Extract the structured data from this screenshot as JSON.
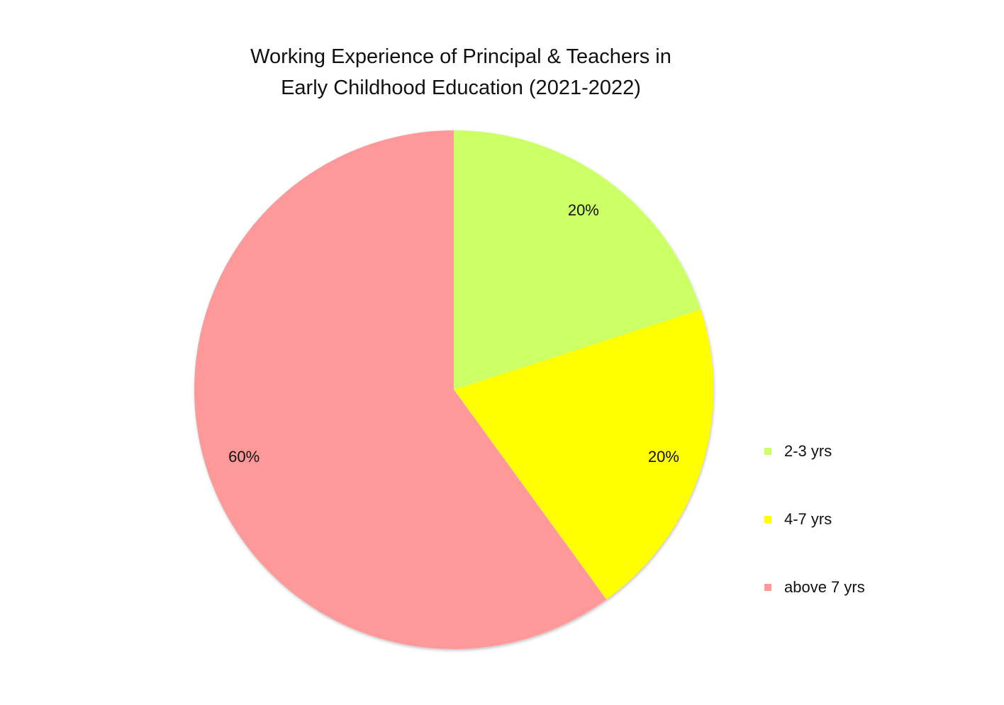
{
  "chart_data": {
    "type": "pie",
    "title_lines": [
      "Working Experience of Principal & Teachers in",
      "Early Childhood Education (2021-2022)"
    ],
    "categories": [
      "2-3 yrs",
      "4-7 yrs",
      "above 7 yrs"
    ],
    "values": [
      20,
      20,
      60
    ],
    "data_labels": [
      "20%",
      "20%",
      "60%"
    ],
    "colors": [
      "#CCFF66",
      "#FFFF00",
      "#FF9999"
    ],
    "start_angle_deg": 0,
    "direction": "clockwise",
    "legend_position": "right"
  }
}
